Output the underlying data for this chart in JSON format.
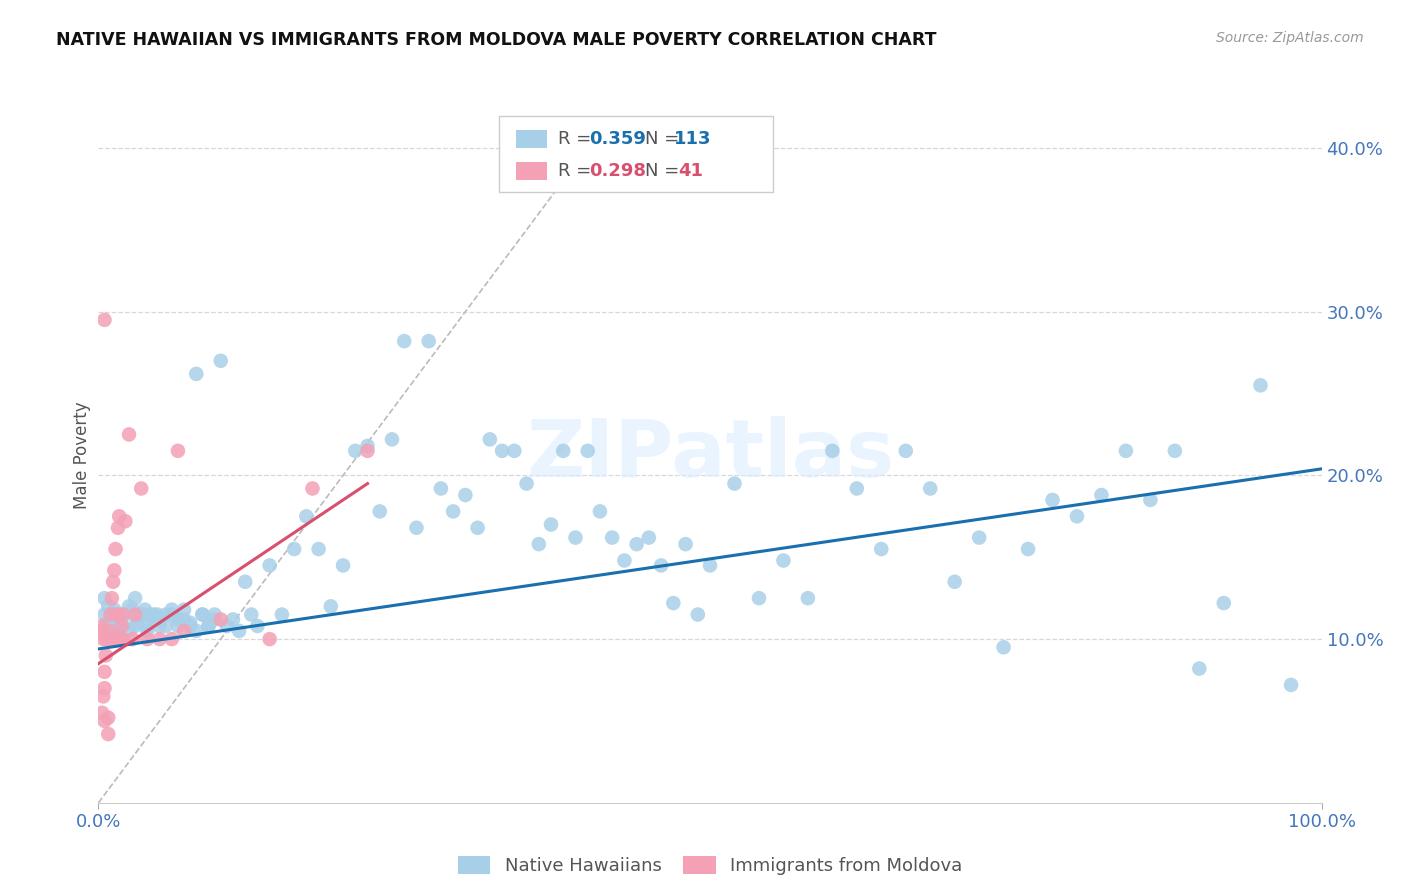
{
  "title": "NATIVE HAWAIIAN VS IMMIGRANTS FROM MOLDOVA MALE POVERTY CORRELATION CHART",
  "source": "Source: ZipAtlas.com",
  "ylabel": "Male Poverty",
  "xlim": [
    0,
    1.0
  ],
  "ylim": [
    0,
    0.425
  ],
  "yticks": [
    0.0,
    0.1,
    0.2,
    0.3,
    0.4
  ],
  "xticks": [
    0.0,
    1.0
  ],
  "xtick_labels": [
    "0.0%",
    "100.0%"
  ],
  "ytick_labels": [
    "10.0%",
    "20.0%",
    "30.0%",
    "40.0%"
  ],
  "color_blue": "#a8cfe8",
  "color_pink": "#f4a0b5",
  "color_line_blue": "#1a6faf",
  "color_line_pink": "#d94f6e",
  "color_diag": "#bbbbbb",
  "color_grid": "#d8d8d8",
  "color_tick": "#4477bb",
  "watermark": "ZIPatlas",
  "nh_x": [
    0.005,
    0.005,
    0.007,
    0.008,
    0.01,
    0.01,
    0.012,
    0.013,
    0.015,
    0.015,
    0.018,
    0.02,
    0.022,
    0.025,
    0.028,
    0.03,
    0.032,
    0.035,
    0.038,
    0.04,
    0.042,
    0.045,
    0.048,
    0.05,
    0.055,
    0.06,
    0.065,
    0.07,
    0.075,
    0.08,
    0.085,
    0.09,
    0.095,
    0.1,
    0.11,
    0.12,
    0.13,
    0.14,
    0.15,
    0.16,
    0.17,
    0.18,
    0.19,
    0.2,
    0.21,
    0.22,
    0.23,
    0.24,
    0.25,
    0.26,
    0.27,
    0.28,
    0.29,
    0.3,
    0.31,
    0.32,
    0.33,
    0.34,
    0.35,
    0.36,
    0.37,
    0.38,
    0.39,
    0.4,
    0.41,
    0.42,
    0.43,
    0.44,
    0.45,
    0.46,
    0.47,
    0.48,
    0.49,
    0.5,
    0.52,
    0.54,
    0.56,
    0.58,
    0.6,
    0.62,
    0.64,
    0.66,
    0.68,
    0.7,
    0.72,
    0.74,
    0.76,
    0.78,
    0.8,
    0.82,
    0.84,
    0.86,
    0.88,
    0.9,
    0.92,
    0.95,
    0.975,
    0.025,
    0.03,
    0.035,
    0.04,
    0.045,
    0.05,
    0.055,
    0.06,
    0.065,
    0.07,
    0.075,
    0.08,
    0.085,
    0.09,
    0.095,
    0.105,
    0.115,
    0.125
  ],
  "nh_y": [
    0.115,
    0.125,
    0.11,
    0.12,
    0.105,
    0.115,
    0.112,
    0.118,
    0.105,
    0.11,
    0.115,
    0.108,
    0.115,
    0.12,
    0.118,
    0.125,
    0.11,
    0.115,
    0.118,
    0.108,
    0.115,
    0.112,
    0.115,
    0.108,
    0.115,
    0.118,
    0.112,
    0.118,
    0.11,
    0.262,
    0.115,
    0.108,
    0.115,
    0.27,
    0.112,
    0.135,
    0.108,
    0.145,
    0.115,
    0.155,
    0.175,
    0.155,
    0.12,
    0.145,
    0.215,
    0.218,
    0.178,
    0.222,
    0.282,
    0.168,
    0.282,
    0.192,
    0.178,
    0.188,
    0.168,
    0.222,
    0.215,
    0.215,
    0.195,
    0.158,
    0.17,
    0.215,
    0.162,
    0.215,
    0.178,
    0.162,
    0.148,
    0.158,
    0.162,
    0.145,
    0.122,
    0.158,
    0.115,
    0.145,
    0.195,
    0.125,
    0.148,
    0.125,
    0.215,
    0.192,
    0.155,
    0.215,
    0.192,
    0.135,
    0.162,
    0.095,
    0.155,
    0.185,
    0.175,
    0.188,
    0.215,
    0.185,
    0.215,
    0.082,
    0.122,
    0.255,
    0.072,
    0.105,
    0.108,
    0.115,
    0.105,
    0.115,
    0.112,
    0.108,
    0.115,
    0.108,
    0.112,
    0.108,
    0.105,
    0.115,
    0.108,
    0.112,
    0.108,
    0.105,
    0.115
  ],
  "md_x": [
    0.002,
    0.003,
    0.004,
    0.005,
    0.005,
    0.005,
    0.006,
    0.007,
    0.008,
    0.008,
    0.009,
    0.01,
    0.01,
    0.011,
    0.012,
    0.013,
    0.014,
    0.015,
    0.015,
    0.016,
    0.017,
    0.018,
    0.019,
    0.02,
    0.02,
    0.022,
    0.025,
    0.028,
    0.03,
    0.035,
    0.04,
    0.05,
    0.06,
    0.065,
    0.07,
    0.1,
    0.14,
    0.175,
    0.22,
    0.003,
    0.004,
    0.005
  ],
  "md_y": [
    0.105,
    0.108,
    0.1,
    0.05,
    0.07,
    0.08,
    0.09,
    0.1,
    0.052,
    0.042,
    0.105,
    0.1,
    0.115,
    0.125,
    0.135,
    0.142,
    0.155,
    0.1,
    0.115,
    0.168,
    0.175,
    0.1,
    0.108,
    0.1,
    0.115,
    0.172,
    0.225,
    0.1,
    0.115,
    0.192,
    0.1,
    0.1,
    0.1,
    0.215,
    0.105,
    0.112,
    0.1,
    0.192,
    0.215,
    0.055,
    0.065,
    0.295
  ],
  "diag_line_x": [
    0.0,
    0.4
  ],
  "diag_line_y": [
    0.0,
    0.4
  ],
  "nh_trend_x": [
    0.0,
    1.0
  ],
  "nh_trend_y": [
    0.094,
    0.204
  ],
  "md_trend_x": [
    0.0,
    0.22
  ],
  "md_trend_y": [
    0.085,
    0.195
  ]
}
